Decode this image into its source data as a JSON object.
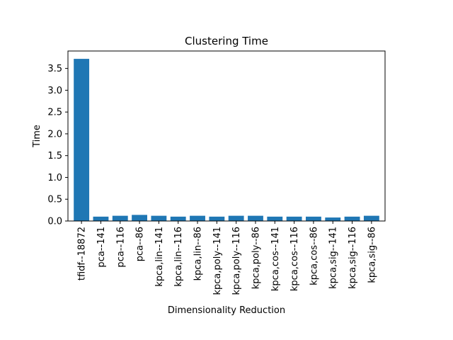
{
  "chart_data": {
    "type": "bar",
    "title": "Clustering Time",
    "xlabel": "Dimensionality Reduction",
    "ylabel": "Time",
    "categories": [
      "tfidf--18872",
      "pca--141",
      "pca--116",
      "pca--86",
      "kpca,lin--141",
      "kpca,lin--116",
      "kpca,lin--86",
      "kpca,poly--141",
      "kpca,poly--116",
      "kpca,poly--86",
      "kpca,cos--141",
      "kpca,cos--116",
      "kpca,cos--86",
      "kpca,sig--141",
      "kpca,sig--116",
      "kpca,sig--86"
    ],
    "values": [
      3.72,
      0.1,
      0.12,
      0.14,
      0.12,
      0.1,
      0.12,
      0.1,
      0.12,
      0.12,
      0.1,
      0.1,
      0.1,
      0.08,
      0.1,
      0.12
    ],
    "ylim": [
      0,
      3.9
    ],
    "yticks": [
      "0.0",
      "0.5",
      "1.0",
      "1.5",
      "2.0",
      "2.5",
      "3.0",
      "3.5"
    ],
    "grid": false,
    "bar_color": "#1f77b4"
  }
}
